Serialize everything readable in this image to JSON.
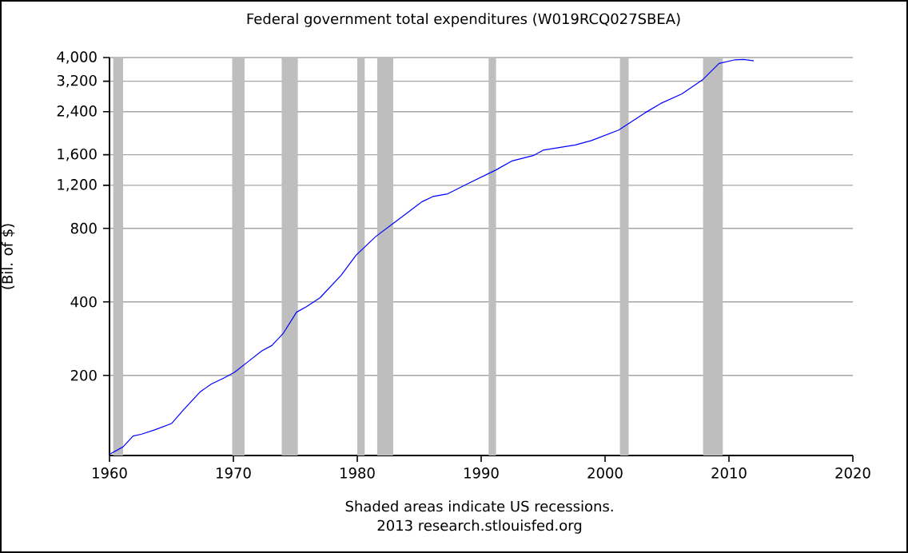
{
  "chart_data": {
    "type": "line",
    "title": "Federal government total expenditures (W019RCQ027SBEA)",
    "ylabel": "(Bil. of $)",
    "annotations": [
      "Shaded areas indicate US recessions.",
      "2013 research.stlouisfed.org"
    ],
    "x": [
      1960.0,
      1961.1,
      1961.9,
      1962.6,
      1963.7,
      1965.0,
      1966.0,
      1967.3,
      1968.2,
      1969.3,
      1970.1,
      1971.2,
      1972.3,
      1973.1,
      1974.0,
      1975.1,
      1975.9,
      1977.0,
      1978.7,
      1979.9,
      1981.5,
      1983.1,
      1985.2,
      1986.1,
      1987.3,
      1989.0,
      1991.2,
      1992.5,
      1994.2,
      1995.0,
      1997.6,
      1998.9,
      2001.1,
      2003.2,
      2004.5,
      2006.2,
      2007.9,
      2009.2,
      2010.5,
      2011.2,
      2012.0
    ],
    "values": [
      95,
      102,
      113,
      115,
      120,
      127,
      145,
      171,
      184,
      196,
      206,
      228,
      252,
      265,
      296,
      363,
      382,
      416,
      514,
      621,
      741,
      853,
      1026,
      1079,
      1107,
      1223,
      1387,
      1510,
      1588,
      1671,
      1755,
      1829,
      2019,
      2372,
      2596,
      2840,
      3253,
      3785,
      3917,
      3927,
      3880
    ],
    "color": "#0000ff",
    "log": "y",
    "grid": "y",
    "xlim": [
      1960,
      2020
    ],
    "xticks": [
      1960,
      1970,
      1980,
      1990,
      2000,
      2010,
      2020
    ],
    "ylim": [
      94,
      4000
    ],
    "yticks": [
      {
        "value": 200,
        "label": "200"
      },
      {
        "value": 400,
        "label": "400"
      },
      {
        "value": 800,
        "label": "800"
      },
      {
        "value": 1200,
        "label": "1,200"
      },
      {
        "value": 1600,
        "label": "1,600"
      },
      {
        "value": 2400,
        "label": "2,400"
      },
      {
        "value": 3200,
        "label": "3,200"
      },
      {
        "value": 4000,
        "label": "4,000"
      }
    ],
    "bands": [
      {
        "axis": "x",
        "from": 1960.3,
        "to": 1961.1,
        "color": "#bebebe"
      },
      {
        "axis": "x",
        "from": 1969.9,
        "to": 1970.9,
        "color": "#bebebe"
      },
      {
        "axis": "x",
        "from": 1973.9,
        "to": 1975.2,
        "color": "#bebebe"
      },
      {
        "axis": "x",
        "from": 1980.0,
        "to": 1980.6,
        "color": "#bebebe"
      },
      {
        "axis": "x",
        "from": 1981.6,
        "to": 1982.9,
        "color": "#bebebe"
      },
      {
        "axis": "x",
        "from": 1990.6,
        "to": 1991.2,
        "color": "#bebebe"
      },
      {
        "axis": "x",
        "from": 2001.2,
        "to": 2001.9,
        "color": "#bebebe"
      },
      {
        "axis": "x",
        "from": 2007.9,
        "to": 2009.5,
        "color": "#bebebe"
      }
    ]
  }
}
